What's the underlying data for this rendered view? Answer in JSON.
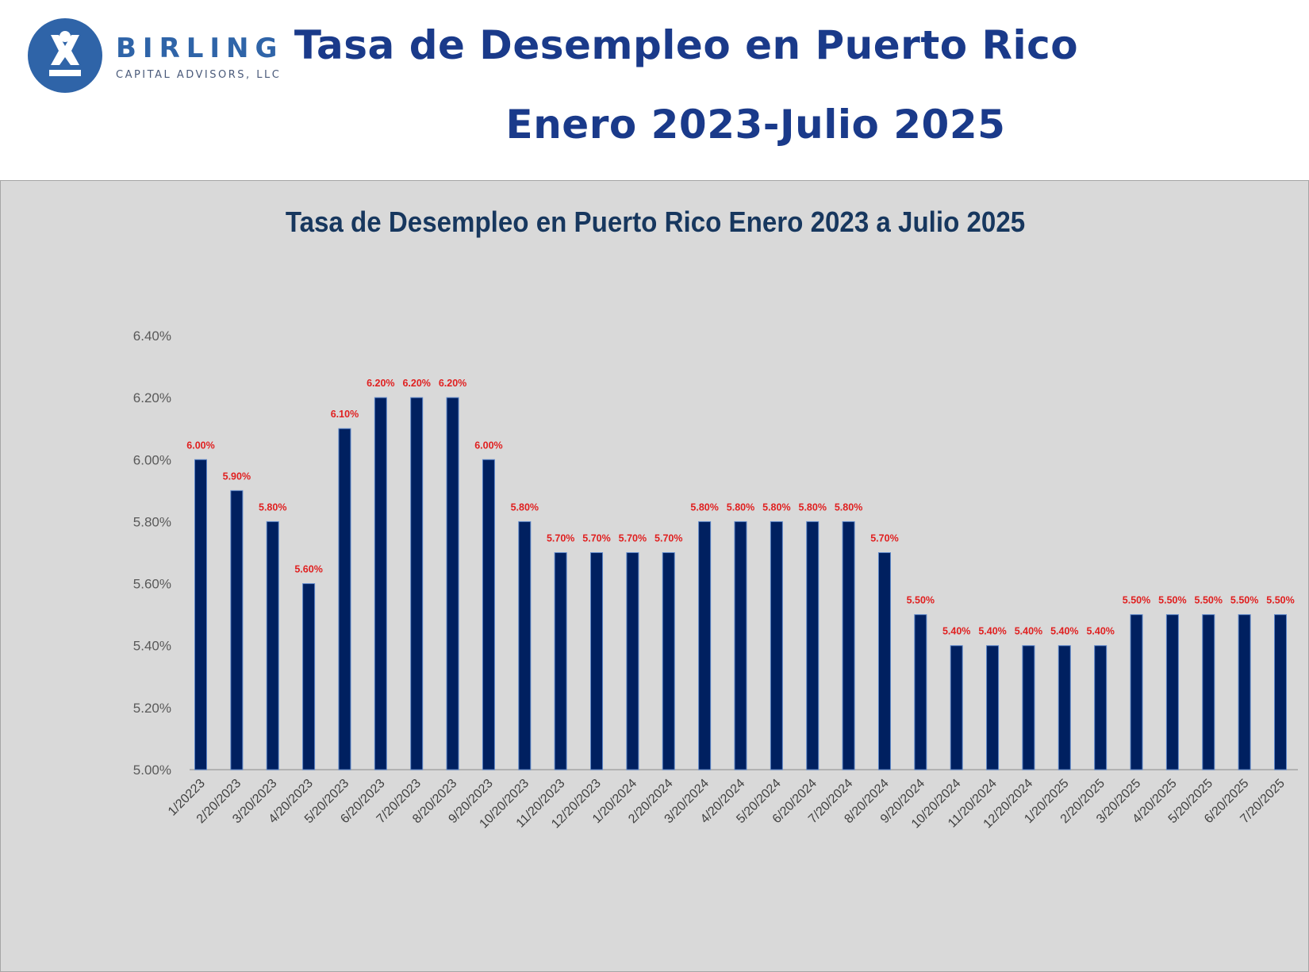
{
  "header": {
    "logo_text": "BIRLING",
    "logo_subtext": "CAPITAL ADVISORS, LLC",
    "title_line1": "Tasa de Desempleo en Puerto Rico",
    "title_line2": "Enero 2023-Julio 2025"
  },
  "colors": {
    "bar": "#002060",
    "data_label": "#e02020",
    "title": "#1a3a8a",
    "chart_title": "#17375e",
    "background": "#d9d9d9"
  },
  "chart_data": {
    "type": "bar",
    "title": "Tasa de Desempleo en Puerto Rico Enero 2023 a Julio 2025",
    "xlabel": "",
    "ylabel": "",
    "ylim": [
      5.0,
      6.4
    ],
    "yticks": [
      "5.00%",
      "5.20%",
      "5.40%",
      "5.60%",
      "5.80%",
      "6.00%",
      "6.20%",
      "6.40%"
    ],
    "grid": false,
    "categories": [
      "1/20223",
      "2/20/2023",
      "3/20/2023",
      "4/20/2023",
      "5/20/2023",
      "6/20/2023",
      "7/20/2023",
      "8/20/2023",
      "9/20/2023",
      "10/20/2023",
      "11/20/2023",
      "12/20/2023",
      "1/20/2024",
      "2/20/2024",
      "3/20/2024",
      "4/20/2024",
      "5/20/2024",
      "6/20/2024",
      "7/20/2024",
      "8/20/2024",
      "9/20/2024",
      "10/20/2024",
      "11/20/2024",
      "12/20/2024",
      "1/20/2025",
      "2/20/2025",
      "3/20/2025",
      "4/20/2025",
      "5/20/2025",
      "6/20/2025",
      "7/20/2025"
    ],
    "values": [
      6.0,
      5.9,
      5.8,
      5.6,
      6.1,
      6.2,
      6.2,
      6.2,
      6.0,
      5.8,
      5.7,
      5.7,
      5.7,
      5.7,
      5.8,
      5.8,
      5.8,
      5.8,
      5.8,
      5.7,
      5.5,
      5.4,
      5.4,
      5.4,
      5.4,
      5.4,
      5.5,
      5.5,
      5.5,
      5.5,
      5.5
    ],
    "data_labels": [
      "6.00%",
      "5.90%",
      "5.80%",
      "5.60%",
      "6.10%",
      "6.20%",
      "6.20%",
      "6.20%",
      "6.00%",
      "5.80%",
      "5.70%",
      "5.70%",
      "5.70%",
      "5.70%",
      "5.80%",
      "5.80%",
      "5.80%",
      "5.80%",
      "5.80%",
      "5.70%",
      "5.50%",
      "5.40%",
      "5.40%",
      "5.40%",
      "5.40%",
      "5.40%",
      "5.50%",
      "5.50%",
      "5.50%",
      "5.50%",
      "5.50%"
    ]
  }
}
